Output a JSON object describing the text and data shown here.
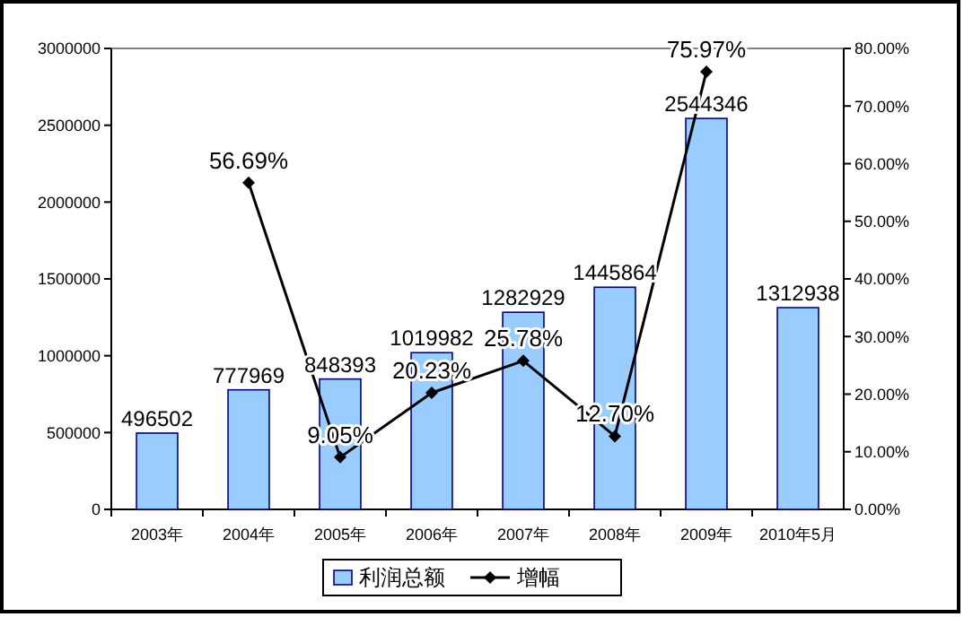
{
  "chart_data": {
    "type": "bar",
    "categories": [
      "2003年",
      "2004年",
      "2005年",
      "2006年",
      "2007年",
      "2008年",
      "2009年",
      "2010年5月"
    ],
    "series": [
      {
        "name": "利润总额",
        "color": "#99ccff",
        "values": [
          496502,
          777969,
          848393,
          1019982,
          1282929,
          1445864,
          2544346,
          1312938
        ],
        "value_labels": [
          "496502",
          "777969",
          "848393",
          "1019982",
          "1282929",
          "1445864",
          "2544346",
          "1312938"
        ]
      },
      {
        "name": "增幅",
        "type": "line",
        "axis": "y2",
        "color": "#000000",
        "marker": "diamond",
        "values": [
          null,
          56.69,
          9.05,
          20.23,
          25.78,
          12.7,
          75.97,
          null
        ],
        "value_labels": [
          null,
          "56.69%",
          "9.05%",
          "20.23%",
          "25.78%",
          "12.70%",
          "75.97%",
          null
        ]
      }
    ],
    "ylim": [
      0,
      3000000
    ],
    "yticks": [
      0,
      500000,
      1000000,
      1500000,
      2000000,
      2500000,
      3000000
    ],
    "y2lim": [
      0,
      80
    ],
    "y2ticks": [
      {
        "value": 0,
        "label": "0.00%"
      },
      {
        "value": 10,
        "label": "10.00%"
      },
      {
        "value": 20,
        "label": "20.00%"
      },
      {
        "value": 30,
        "label": "30.00%"
      },
      {
        "value": 40,
        "label": "40.00%"
      },
      {
        "value": 50,
        "label": "50.00%"
      },
      {
        "value": 60,
        "label": "60.00%"
      },
      {
        "value": 70,
        "label": "70.00%"
      },
      {
        "value": 80,
        "label": "80.00%"
      }
    ],
    "grid": false,
    "legend": "bottom"
  }
}
